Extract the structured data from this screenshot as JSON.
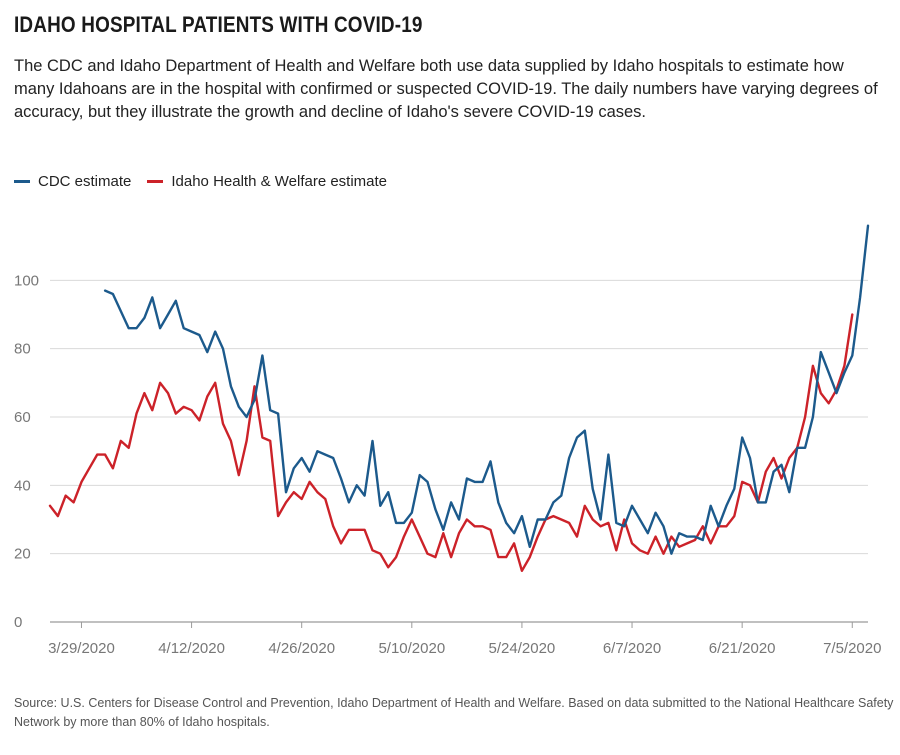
{
  "title": "IDAHO HOSPITAL PATIENTS WITH COVID-19",
  "subtitle": "The CDC and Idaho Department of Health and Welfare both use data supplied by Idaho hospitals to estimate how many Idahoans are in the hospital with confirmed or suspected COVID-19. The daily numbers have varying degrees of accuracy, but they illustrate the growth and decline of Idaho's severe COVID-19 cases.",
  "source": "Source: U.S. Centers for Disease Control and Prevention, Idaho Department of Health and Welfare. Based on data submitted to the National Healthcare Safety Network by more than 80% of Idaho hospitals.",
  "colors": {
    "cdc": "#1c5a8c",
    "idaho": "#cc2229",
    "grid": "#d9d9d9",
    "axis": "#9a9a9a"
  },
  "chart_data": {
    "type": "line",
    "title": "IDAHO HOSPITAL PATIENTS WITH COVID-19",
    "xlabel": "",
    "ylabel": "",
    "ylim": [
      0,
      120
    ],
    "yticks": [
      0,
      20,
      40,
      60,
      80,
      100
    ],
    "xlim": [
      "2020-03-25",
      "2020-07-07"
    ],
    "xticks": [
      {
        "date": "2020-03-29",
        "label": "3/29/2020"
      },
      {
        "date": "2020-04-12",
        "label": "4/12/2020"
      },
      {
        "date": "2020-04-26",
        "label": "4/26/2020"
      },
      {
        "date": "2020-05-10",
        "label": "5/10/2020"
      },
      {
        "date": "2020-05-24",
        "label": "5/24/2020"
      },
      {
        "date": "2020-06-07",
        "label": "6/7/2020"
      },
      {
        "date": "2020-06-21",
        "label": "6/21/2020"
      },
      {
        "date": "2020-07-05",
        "label": "7/5/2020"
      }
    ],
    "grid": "horizontal",
    "legend_position": "top-left",
    "series": [
      {
        "name": "CDC estimate",
        "color": "#1c5a8c",
        "start_date": "2020-04-01",
        "values": [
          97,
          96,
          91,
          86,
          86,
          89,
          95,
          86,
          90,
          94,
          86,
          85,
          84,
          79,
          85,
          80,
          69,
          63,
          60,
          65,
          78,
          62,
          61,
          38,
          45,
          48,
          44,
          50,
          49,
          48,
          42,
          35,
          40,
          37,
          53,
          34,
          38,
          29,
          29,
          32,
          43,
          41,
          33,
          27,
          35,
          30,
          42,
          41,
          41,
          47,
          35,
          29,
          26,
          31,
          22,
          30,
          30,
          35,
          37,
          48,
          54,
          56,
          39,
          30,
          49,
          29,
          28,
          34,
          30,
          26,
          32,
          28,
          20,
          26,
          25,
          25,
          24,
          34,
          28,
          34,
          39,
          54,
          48,
          35,
          35,
          44,
          46,
          38,
          51,
          51,
          60,
          79,
          73,
          67,
          73,
          78,
          95,
          116
        ]
      },
      {
        "name": "Idaho Health & Welfare estimate",
        "color": "#cc2229",
        "start_date": "2020-03-25",
        "values": [
          34,
          31,
          37,
          35,
          41,
          45,
          49,
          49,
          45,
          53,
          51,
          61,
          67,
          62,
          70,
          67,
          61,
          63,
          62,
          59,
          66,
          70,
          58,
          53,
          43,
          53,
          69,
          54,
          53,
          31,
          35,
          38,
          36,
          41,
          38,
          36,
          28,
          23,
          27,
          27,
          27,
          21,
          20,
          16,
          19,
          25,
          30,
          25,
          20,
          19,
          26,
          19,
          26,
          30,
          28,
          28,
          27,
          19,
          19,
          23,
          15,
          19,
          25,
          30,
          31,
          30,
          29,
          25,
          34,
          30,
          28,
          29,
          21,
          30,
          23,
          21,
          20,
          25,
          20,
          25,
          22,
          23,
          24,
          28,
          23,
          28,
          28,
          31,
          41,
          40,
          35,
          44,
          48,
          42,
          48,
          51,
          60,
          75,
          67,
          64,
          68,
          75,
          90
        ]
      }
    ]
  }
}
